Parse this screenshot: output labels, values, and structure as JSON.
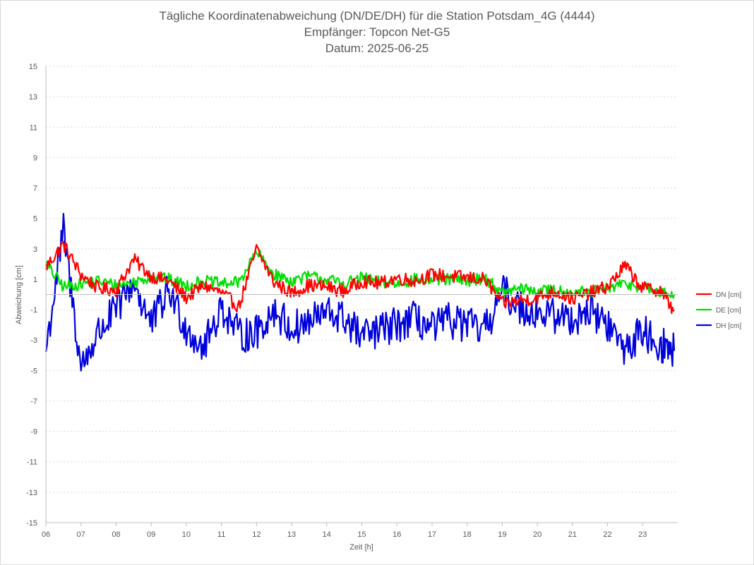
{
  "title": {
    "line1": "Tägliche Koordinatenabweichung (DN/DE/DH) für die Station Potsdam_4G (4444)",
    "line2": "Empfänger: Topcon Net-G5",
    "line3": "Datum: 2025-06-25"
  },
  "chart_data": {
    "type": "line",
    "title": "Tägliche Koordinatenabweichung (DN/DE/DH) für die Station Potsdam_4G (4444)",
    "subtitle": [
      "Empfänger: Topcon Net-G5",
      "Datum: 2025-06-25"
    ],
    "xlabel": "Zeit [h]",
    "ylabel": "Abweichung [cm]",
    "xlim": [
      6,
      24
    ],
    "ylim": [
      -15,
      15
    ],
    "x_ticks": [
      "06",
      "07",
      "08",
      "09",
      "10",
      "11",
      "12",
      "13",
      "14",
      "15",
      "16",
      "17",
      "18",
      "19",
      "20",
      "21",
      "22",
      "23"
    ],
    "y_ticks": [
      15,
      13,
      11,
      9,
      7,
      5,
      3,
      1,
      -1,
      -3,
      -5,
      -7,
      -9,
      -11,
      -13,
      -15
    ],
    "grid": "horizontal dotted",
    "legend_position": "right",
    "x": [
      6.0,
      6.5,
      7.0,
      7.5,
      8.0,
      8.5,
      9.0,
      9.5,
      10.0,
      10.5,
      11.0,
      11.5,
      12.0,
      12.5,
      13.0,
      13.5,
      14.0,
      14.5,
      15.0,
      15.5,
      16.0,
      16.5,
      17.0,
      17.5,
      18.0,
      18.5,
      19.0,
      19.5,
      20.0,
      20.5,
      21.0,
      21.5,
      22.0,
      22.5,
      23.0,
      23.5,
      23.9
    ],
    "series": [
      {
        "name": "DN [cm]",
        "color": "#ff0000",
        "values": [
          1.8,
          3.3,
          1.3,
          0.4,
          0.3,
          2.3,
          1.2,
          0.9,
          -0.2,
          0.6,
          0.1,
          -0.8,
          3.0,
          0.8,
          0.1,
          0.6,
          0.5,
          0.2,
          0.9,
          0.7,
          1.1,
          0.9,
          1.3,
          1.2,
          1.1,
          1.0,
          -0.6,
          -0.4,
          -0.2,
          0.2,
          -0.3,
          0.1,
          0.5,
          1.9,
          0.4,
          0.3,
          -1.1
        ]
      },
      {
        "name": "DE [cm]",
        "color": "#00e000",
        "values": [
          2.0,
          0.5,
          0.7,
          0.9,
          0.6,
          0.8,
          1.2,
          1.0,
          0.6,
          0.9,
          0.7,
          0.8,
          2.8,
          1.3,
          0.9,
          1.2,
          1.0,
          0.7,
          1.1,
          0.8,
          0.7,
          1.0,
          0.9,
          1.0,
          0.9,
          1.1,
          0.1,
          0.4,
          0.2,
          0.3,
          0.2,
          0.1,
          0.4,
          0.7,
          0.5,
          0.1,
          0.0
        ]
      },
      {
        "name": "DH [cm]",
        "color": "#0000dd",
        "values": [
          -3.7,
          4.2,
          -4.8,
          -2.5,
          -1.0,
          0.8,
          -2.0,
          0.3,
          -2.2,
          -3.5,
          -0.8,
          -2.7,
          -2.5,
          -1.0,
          -2.3,
          -1.8,
          -1.2,
          -1.6,
          -2.8,
          -2.4,
          -2.0,
          -1.6,
          -2.3,
          -1.7,
          -2.0,
          -2.4,
          0.2,
          -0.8,
          -1.2,
          -1.4,
          -1.6,
          -1.0,
          -2.0,
          -3.6,
          -2.4,
          -3.3,
          -3.7
        ]
      }
    ]
  },
  "legend": {
    "items": [
      {
        "label": "DN [cm]",
        "color": "#ff0000"
      },
      {
        "label": "DE [cm]",
        "color": "#00e000"
      },
      {
        "label": "DH [cm]",
        "color": "#0000dd"
      }
    ]
  }
}
